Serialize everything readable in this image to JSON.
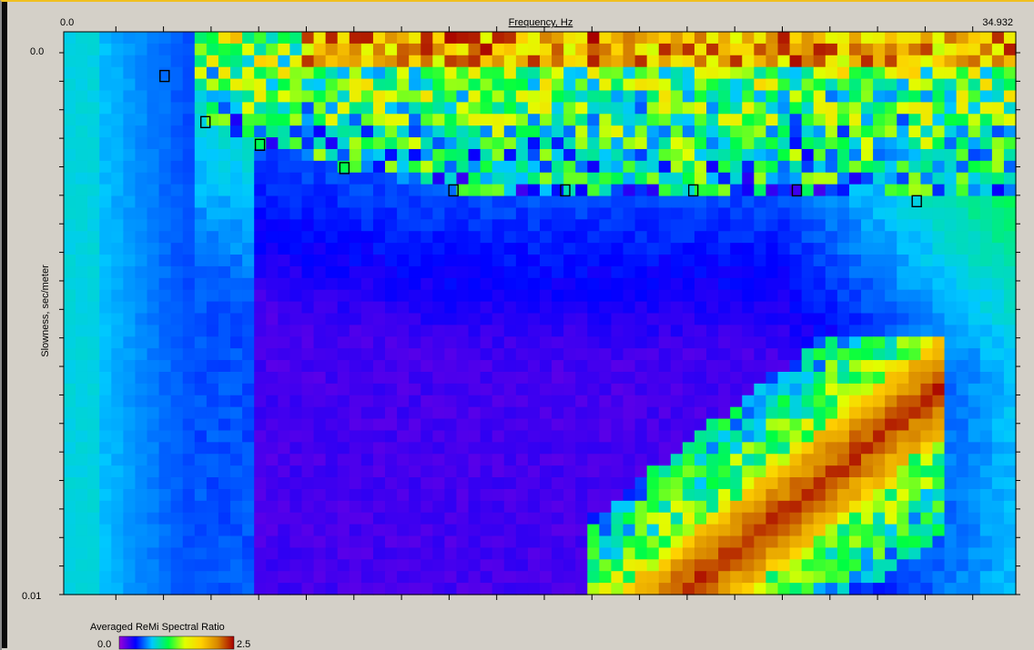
{
  "chart_data": {
    "type": "heatmap",
    "title": "",
    "xlabel": "Frequency, Hz",
    "ylabel": "Slowness, sec/meter",
    "x_tick_labels": [
      "0.0",
      "34.932"
    ],
    "y_tick_labels": [
      "0.0",
      "0.01"
    ],
    "xlim": [
      0.0,
      34.932
    ],
    "ylim": [
      0.0,
      0.01
    ],
    "colorbar": {
      "label": "Averaged ReMi Spectral Ratio",
      "min_label": "0.0",
      "max_label": "2.5",
      "range": [
        0.0,
        2.5
      ],
      "colors": [
        "#9a00d8",
        "#0000ff",
        "#00c8ff",
        "#00ff40",
        "#e0ff00",
        "#ffd000",
        "#d88800",
        "#a80000"
      ]
    },
    "picks": [
      {
        "frequency": 3.7,
        "slowness": 0.00043
      },
      {
        "frequency": 5.2,
        "slowness": 0.00128
      },
      {
        "frequency": 7.2,
        "slowness": 0.0017
      },
      {
        "frequency": 10.3,
        "slowness": 0.00213
      },
      {
        "frequency": 14.3,
        "slowness": 0.00254
      },
      {
        "frequency": 18.4,
        "slowness": 0.00254
      },
      {
        "frequency": 23.1,
        "slowness": 0.00254
      },
      {
        "frequency": 26.9,
        "slowness": 0.00254
      },
      {
        "frequency": 31.3,
        "slowness": 0.00274
      }
    ]
  }
}
